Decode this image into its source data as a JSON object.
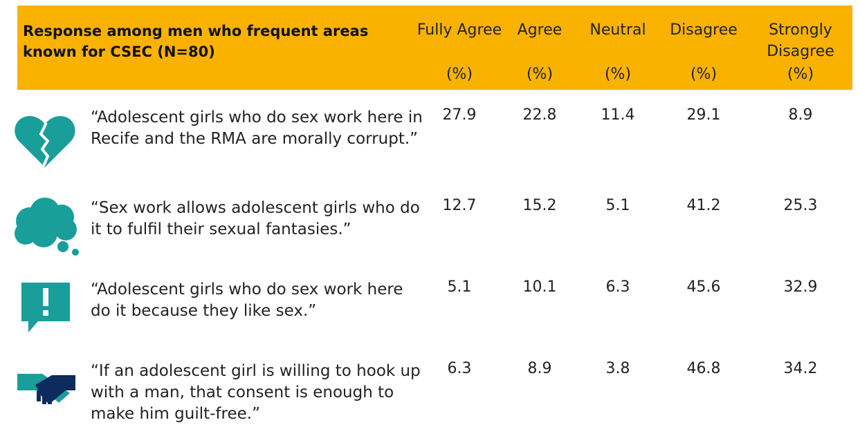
{
  "header": {
    "title": "Response among men who frequent areas known for CSEC (N=80)",
    "columns": [
      {
        "label": "Fully Agree",
        "unit": "(%)"
      },
      {
        "label": "Agree",
        "unit": "(%)"
      },
      {
        "label": "Neutral",
        "unit": "(%)"
      },
      {
        "label": "Disagree",
        "unit": "(%)"
      },
      {
        "label": "Strongly Disagree",
        "unit": "(%)"
      }
    ]
  },
  "table": {
    "rows": [
      {
        "statement": "“Adolescent girls who do sex work here in Recife and the RMA are morally corrupt.”",
        "values": [
          27.9,
          22.8,
          11.4,
          29.1,
          8.9
        ]
      },
      {
        "statement": "“Sex work allows adolescent girls who do it to fulfil their sexual fantasies.”",
        "values": [
          12.7,
          15.2,
          5.1,
          41.2,
          25.3
        ]
      },
      {
        "statement": "“Adolescent girls who do sex work here do it because they like sex.”",
        "values": [
          5.1,
          10.1,
          6.3,
          45.6,
          32.9
        ]
      },
      {
        "statement": "“If an adolescent girl is willing to hook up with a man, that consent is enough to make him guilt-free.”",
        "values": [
          6.3,
          8.9,
          3.8,
          46.8,
          34.2
        ]
      }
    ]
  }
}
